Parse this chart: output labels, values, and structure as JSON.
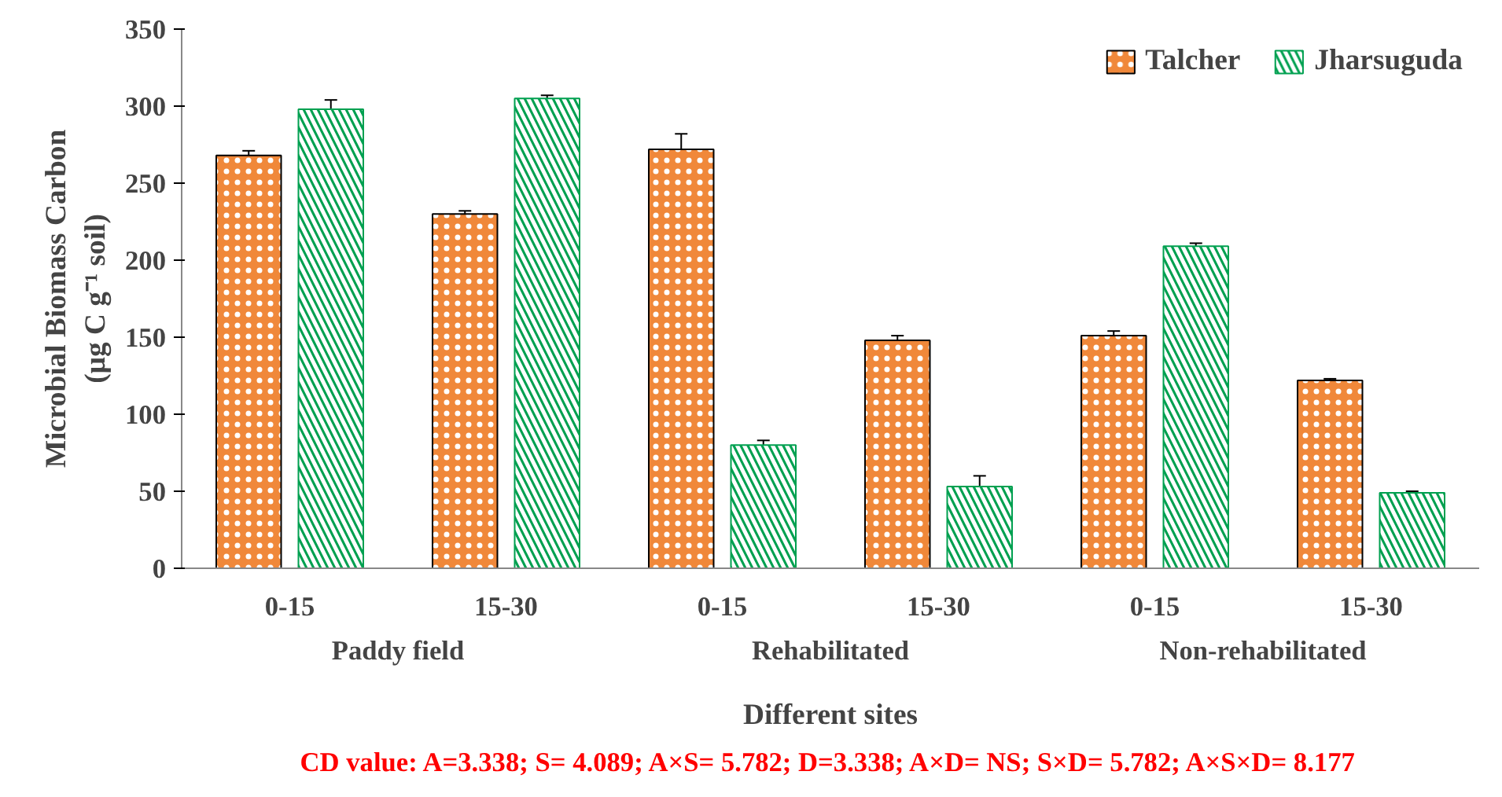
{
  "chart_data": {
    "type": "bar",
    "xlabel": "Different sites",
    "ylabel": "Microbial Biomass Carbon\n(µg C g⁻¹ soil)",
    "categories": [
      "0-15",
      "15-30",
      "0-15",
      "15-30",
      "0-15",
      "15-30"
    ],
    "series": [
      {
        "name": "Talcher",
        "color": "#f0883a",
        "values": [
          268,
          230,
          272,
          148,
          151,
          122
        ],
        "errors": [
          3,
          2,
          10,
          3,
          3,
          1
        ]
      },
      {
        "name": "Jharsuguda",
        "color": "#00a050",
        "values": [
          298,
          305,
          80,
          53,
          209,
          49
        ],
        "errors": [
          6,
          2,
          3,
          7,
          2,
          1
        ]
      }
    ],
    "ylim": [
      0,
      350
    ],
    "yticks": [
      0,
      50,
      100,
      150,
      200,
      250,
      300,
      350
    ],
    "grid": false,
    "legend": "top right",
    "annotations": [
      "Paddy field",
      "Rehabilitated",
      "Non-rehabilitated",
      "CD value: A=3.338; S= 4.089; A×S= 5.782; D=3.338; A×D= NS; S×D= 5.782; A×S×D= 8.177"
    ]
  }
}
